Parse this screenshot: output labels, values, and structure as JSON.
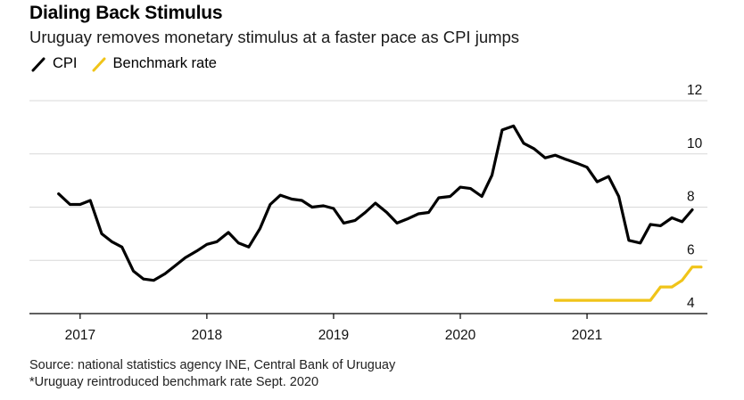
{
  "chart_data": {
    "type": "line",
    "title": "Dialing Back Stimulus",
    "subtitle": "Uruguay removes monetary stimulus at a faster pace as CPI jumps",
    "xlabel": "",
    "ylabel": "",
    "xlim": [
      2016.6,
      2021.95
    ],
    "ylim": [
      4,
      12
    ],
    "y_ticks": [
      4,
      6,
      8,
      10,
      12
    ],
    "y_tick_labels": [
      "4",
      "6",
      "8",
      "10",
      "12"
    ],
    "x_ticks": [
      2017,
      2018,
      2019,
      2020,
      2021
    ],
    "x_tick_labels": [
      "2017",
      "2018",
      "2019",
      "2020",
      "2021"
    ],
    "grid": true,
    "legend_position": "top-left",
    "series": [
      {
        "name": "CPI",
        "color": "#000000",
        "x": [
          2016.83,
          2016.92,
          2017.0,
          2017.08,
          2017.17,
          2017.25,
          2017.33,
          2017.42,
          2017.5,
          2017.58,
          2017.67,
          2017.75,
          2017.83,
          2017.92,
          2018.0,
          2018.08,
          2018.17,
          2018.25,
          2018.33,
          2018.42,
          2018.5,
          2018.58,
          2018.67,
          2018.75,
          2018.83,
          2018.92,
          2019.0,
          2019.08,
          2019.17,
          2019.25,
          2019.33,
          2019.42,
          2019.5,
          2019.58,
          2019.67,
          2019.75,
          2019.83,
          2019.92,
          2020.0,
          2020.08,
          2020.17,
          2020.25,
          2020.33,
          2020.42,
          2020.5,
          2020.58,
          2020.67,
          2020.75,
          2020.83,
          2020.92,
          2021.0,
          2021.08,
          2021.17,
          2021.25,
          2021.33,
          2021.42,
          2021.5,
          2021.58,
          2021.67,
          2021.75,
          2021.83
        ],
        "values": [
          8.5,
          8.1,
          8.1,
          8.25,
          7.0,
          6.7,
          6.5,
          5.6,
          5.3,
          5.25,
          5.5,
          5.8,
          6.1,
          6.35,
          6.6,
          6.7,
          7.05,
          6.65,
          6.5,
          7.2,
          8.1,
          8.45,
          8.3,
          8.25,
          8.0,
          8.05,
          7.95,
          7.4,
          7.5,
          7.8,
          8.15,
          7.8,
          7.4,
          7.55,
          7.75,
          7.8,
          8.35,
          8.4,
          8.75,
          8.7,
          8.4,
          9.2,
          10.9,
          11.05,
          10.4,
          10.2,
          9.85,
          9.95,
          9.8,
          9.65,
          9.5,
          8.95,
          9.15,
          8.4,
          6.75,
          6.65,
          7.35,
          7.3,
          7.6,
          7.45,
          7.9
        ]
      },
      {
        "name": "Benchmark rate",
        "color": "#f0c419",
        "x": [
          2020.75,
          2020.83,
          2020.92,
          2021.0,
          2021.08,
          2021.17,
          2021.25,
          2021.33,
          2021.42,
          2021.5,
          2021.58,
          2021.67,
          2021.75,
          2021.83,
          2021.9
        ],
        "values": [
          4.5,
          4.5,
          4.5,
          4.5,
          4.5,
          4.5,
          4.5,
          4.5,
          4.5,
          4.5,
          5.0,
          5.0,
          5.25,
          5.75,
          5.75
        ]
      }
    ]
  },
  "footer": {
    "source": "Source: national statistics agency INE, Central Bank of Uruguay",
    "note": "*Uruguay reintroduced benchmark rate Sept. 2020"
  },
  "colors": {
    "grid": "#d9d9d9",
    "axis": "#000000"
  }
}
